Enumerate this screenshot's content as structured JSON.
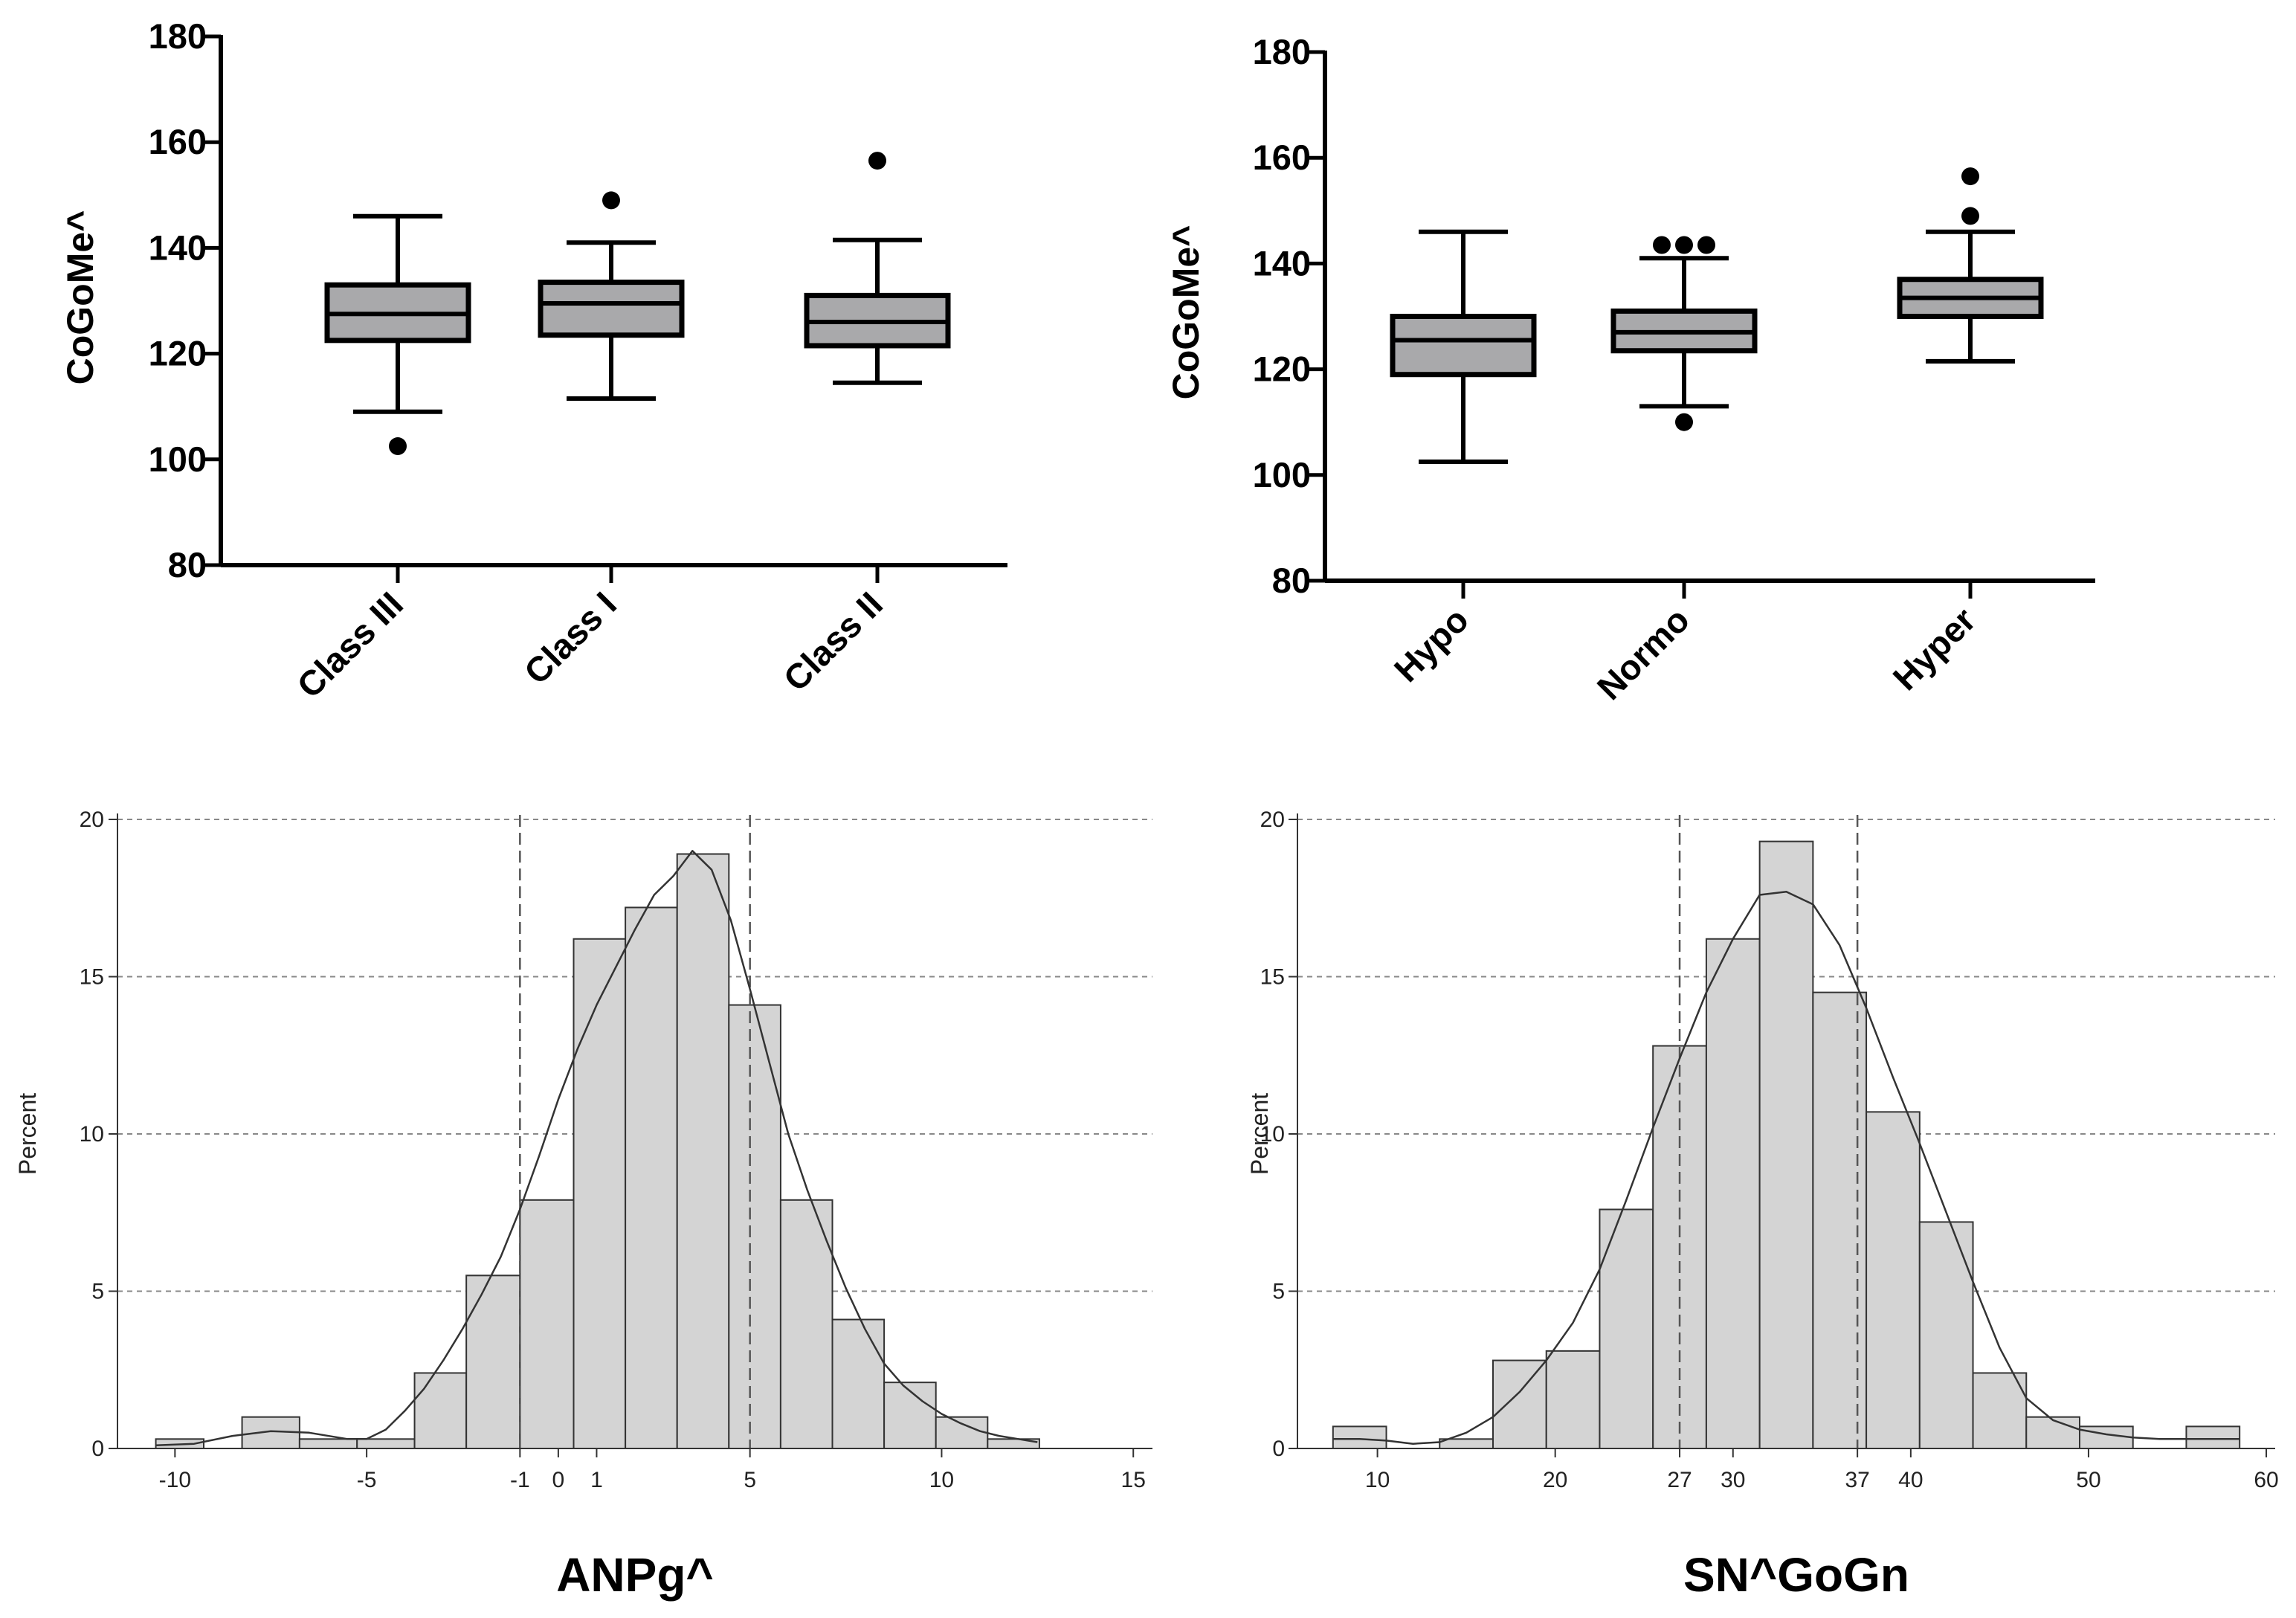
{
  "chart_data": [
    {
      "type": "box",
      "ylabel": "CoGoMe^",
      "ylim": [
        80,
        180
      ],
      "yticks": [
        80,
        100,
        120,
        140,
        160,
        180
      ],
      "categories": [
        "Class III",
        "Class I",
        "Class II"
      ],
      "boxes": [
        {
          "whisker_low": 109,
          "q1": 122.5,
          "median": 127.5,
          "q3": 133,
          "whisker_high": 146,
          "outliers": [
            102.5
          ]
        },
        {
          "whisker_low": 111.5,
          "q1": 123.5,
          "median": 129.5,
          "q3": 133.5,
          "whisker_high": 141,
          "outliers": [
            149
          ]
        },
        {
          "whisker_low": 114.5,
          "q1": 121.5,
          "median": 126,
          "q3": 131,
          "whisker_high": 141.5,
          "outliers": [
            156.5
          ]
        }
      ]
    },
    {
      "type": "box",
      "ylabel": "CoGoMe^",
      "ylim": [
        80,
        180
      ],
      "yticks": [
        80,
        100,
        120,
        140,
        160,
        180
      ],
      "categories": [
        "Hypo",
        "Normo",
        "Hyper"
      ],
      "boxes": [
        {
          "whisker_low": 102.5,
          "q1": 119,
          "median": 125.5,
          "q3": 130,
          "whisker_high": 146,
          "outliers": []
        },
        {
          "whisker_low": 113,
          "q1": 123.5,
          "median": 127,
          "q3": 131,
          "whisker_high": 141,
          "outliers": [
            143.5,
            143.5,
            143.5,
            110
          ]
        },
        {
          "whisker_low": 121.5,
          "q1": 130,
          "median": 133.5,
          "q3": 137,
          "whisker_high": 146,
          "outliers": [
            149,
            156.5
          ]
        }
      ]
    },
    {
      "type": "histogram",
      "title": "ANPg^",
      "ylabel": "Percent",
      "xlim": [
        -11.5,
        15.5
      ],
      "ylim": [
        0,
        20
      ],
      "xticks": [
        "-10",
        "-5",
        "-1",
        "0",
        "1",
        "5",
        "10",
        "15"
      ],
      "xtick_values": [
        -10,
        -5,
        -1,
        0,
        1,
        5,
        10,
        15
      ],
      "yticks": [
        "0",
        "5",
        "10",
        "15",
        "20"
      ],
      "ytick_values": [
        0,
        5,
        10,
        15,
        20
      ],
      "bins": [
        {
          "x0": -10.5,
          "x1": -9.25,
          "value": 0.3
        },
        {
          "x0": -8.25,
          "x1": -6.75,
          "value": 1.0
        },
        {
          "x0": -6.75,
          "x1": -5.25,
          "value": 0.3
        },
        {
          "x0": -5.25,
          "x1": -3.75,
          "value": 0.3
        },
        {
          "x0": -3.75,
          "x1": -2.4,
          "value": 2.4
        },
        {
          "x0": -2.4,
          "x1": -1.0,
          "value": 5.5
        },
        {
          "x0": -1.0,
          "x1": 0.4,
          "value": 7.9
        },
        {
          "x0": 0.4,
          "x1": 1.75,
          "value": 16.2
        },
        {
          "x0": 1.75,
          "x1": 3.1,
          "value": 17.2
        },
        {
          "x0": 3.1,
          "x1": 4.45,
          "value": 18.9
        },
        {
          "x0": 4.45,
          "x1": 5.8,
          "value": 14.1
        },
        {
          "x0": 5.8,
          "x1": 7.15,
          "value": 7.9
        },
        {
          "x0": 7.15,
          "x1": 8.5,
          "value": 4.1
        },
        {
          "x0": 8.5,
          "x1": 9.85,
          "value": 2.1
        },
        {
          "x0": 9.85,
          "x1": 11.2,
          "value": 1.0
        },
        {
          "x0": 11.2,
          "x1": 12.55,
          "value": 0.3
        }
      ],
      "density_curve": [
        [
          -10.5,
          0.1
        ],
        [
          -9.5,
          0.15
        ],
        [
          -8.5,
          0.4
        ],
        [
          -7.5,
          0.55
        ],
        [
          -6.5,
          0.5
        ],
        [
          -5.5,
          0.3
        ],
        [
          -5,
          0.3
        ],
        [
          -4.5,
          0.6
        ],
        [
          -4,
          1.2
        ],
        [
          -3.5,
          1.9
        ],
        [
          -3,
          2.8
        ],
        [
          -2.5,
          3.8
        ],
        [
          -2,
          4.9
        ],
        [
          -1.5,
          6.1
        ],
        [
          -1,
          7.6
        ],
        [
          -0.5,
          9.3
        ],
        [
          0,
          11.1
        ],
        [
          0.5,
          12.7
        ],
        [
          1,
          14.1
        ],
        [
          1.5,
          15.3
        ],
        [
          2,
          16.5
        ],
        [
          2.5,
          17.6
        ],
        [
          3,
          18.2
        ],
        [
          3.5,
          19.0
        ],
        [
          4,
          18.4
        ],
        [
          4.5,
          16.8
        ],
        [
          5,
          14.6
        ],
        [
          5.5,
          12.3
        ],
        [
          6,
          10.0
        ],
        [
          6.5,
          8.2
        ],
        [
          7,
          6.6
        ],
        [
          7.5,
          5.1
        ],
        [
          8,
          3.8
        ],
        [
          8.5,
          2.7
        ],
        [
          9,
          2.0
        ],
        [
          9.5,
          1.5
        ],
        [
          10,
          1.1
        ],
        [
          10.5,
          0.8
        ],
        [
          11,
          0.55
        ],
        [
          11.5,
          0.4
        ],
        [
          12,
          0.3
        ],
        [
          12.5,
          0.2
        ]
      ],
      "reference_lines_x": [
        -1,
        5
      ],
      "grid": "horizontal dashed"
    },
    {
      "type": "histogram",
      "title": "SN^GoGn",
      "ylabel": "Percent",
      "xlim": [
        5.5,
        60.5
      ],
      "ylim": [
        0,
        20
      ],
      "xticks": [
        "10",
        "20",
        "27",
        "30",
        "37",
        "40",
        "50",
        "60"
      ],
      "xtick_values": [
        10,
        20,
        27,
        30,
        37,
        40,
        50,
        60
      ],
      "yticks": [
        "0",
        "5",
        "10",
        "15",
        "20"
      ],
      "ytick_values": [
        0,
        5,
        10,
        15,
        20
      ],
      "bins": [
        {
          "x0": 7.5,
          "x1": 10.5,
          "value": 0.7
        },
        {
          "x0": 13.5,
          "x1": 16.5,
          "value": 0.3
        },
        {
          "x0": 16.5,
          "x1": 19.5,
          "value": 2.8
        },
        {
          "x0": 19.5,
          "x1": 22.5,
          "value": 3.1
        },
        {
          "x0": 22.5,
          "x1": 25.5,
          "value": 7.6
        },
        {
          "x0": 25.5,
          "x1": 28.5,
          "value": 12.8
        },
        {
          "x0": 28.5,
          "x1": 31.5,
          "value": 16.2
        },
        {
          "x0": 31.5,
          "x1": 34.5,
          "value": 19.3
        },
        {
          "x0": 34.5,
          "x1": 37.5,
          "value": 14.5
        },
        {
          "x0": 37.5,
          "x1": 40.5,
          "value": 10.7
        },
        {
          "x0": 40.5,
          "x1": 43.5,
          "value": 7.2
        },
        {
          "x0": 43.5,
          "x1": 46.5,
          "value": 2.4
        },
        {
          "x0": 46.5,
          "x1": 49.5,
          "value": 1.0
        },
        {
          "x0": 49.5,
          "x1": 52.5,
          "value": 0.7
        },
        {
          "x0": 55.5,
          "x1": 58.5,
          "value": 0.7
        }
      ],
      "density_curve": [
        [
          7.5,
          0.3
        ],
        [
          9,
          0.3
        ],
        [
          10.5,
          0.25
        ],
        [
          12,
          0.15
        ],
        [
          13.5,
          0.2
        ],
        [
          15,
          0.5
        ],
        [
          16.5,
          1.0
        ],
        [
          18,
          1.8
        ],
        [
          19.5,
          2.8
        ],
        [
          21,
          4.0
        ],
        [
          22.5,
          5.7
        ],
        [
          24,
          7.9
        ],
        [
          25.5,
          10.2
        ],
        [
          27,
          12.4
        ],
        [
          28.5,
          14.5
        ],
        [
          30,
          16.2
        ],
        [
          31.5,
          17.6
        ],
        [
          33,
          17.7
        ],
        [
          34.5,
          17.3
        ],
        [
          36,
          16.0
        ],
        [
          37.5,
          14.0
        ],
        [
          39,
          11.8
        ],
        [
          40.5,
          9.7
        ],
        [
          42,
          7.5
        ],
        [
          43.5,
          5.3
        ],
        [
          45,
          3.2
        ],
        [
          46.5,
          1.6
        ],
        [
          48,
          0.9
        ],
        [
          49.5,
          0.6
        ],
        [
          51,
          0.45
        ],
        [
          52.5,
          0.35
        ],
        [
          54,
          0.3
        ],
        [
          55.5,
          0.3
        ],
        [
          57,
          0.3
        ],
        [
          58.5,
          0.3
        ]
      ],
      "reference_lines_x": [
        27,
        37
      ],
      "grid": "horizontal dashed"
    }
  ]
}
